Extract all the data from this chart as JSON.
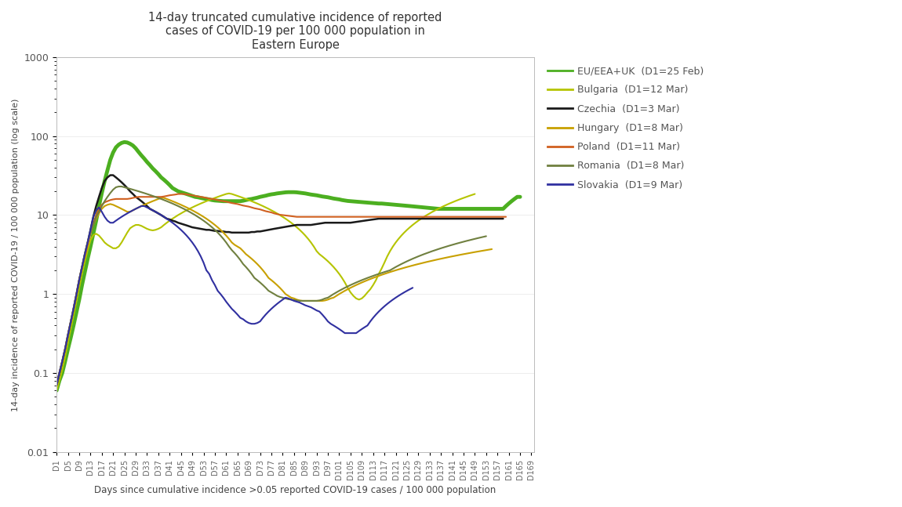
{
  "title": "14-day truncated cumulative incidence of reported\ncases of COVID-19 per 100 000 population in\nEastern Europe",
  "xlabel": "Days since cumulative incidence >0.05 reported COVID-19 cases / 100 000 population",
  "ylabel": "14-day incidence of reported COVID-19 / 100 000 population (log scale)",
  "ylim": [
    0.01,
    1000
  ],
  "background_color": "#ffffff",
  "series": [
    {
      "name": "EU/EEA+UK  (D1=25 Feb)",
      "color": "#4caf20",
      "linewidth": 3.5,
      "start_day": 1,
      "data": [
        0.06,
        0.08,
        0.1,
        0.14,
        0.2,
        0.28,
        0.4,
        0.58,
        0.85,
        1.3,
        1.9,
        2.8,
        4.0,
        5.8,
        8.5,
        13,
        19,
        27,
        37,
        50,
        62,
        72,
        78,
        82,
        84,
        83,
        80,
        76,
        70,
        63,
        57,
        52,
        47,
        43,
        39,
        36,
        33,
        30,
        28,
        26,
        24,
        22,
        21,
        20,
        19.5,
        19,
        18.5,
        18,
        17.5,
        17,
        16.8,
        16.5,
        16.2,
        16,
        15.8,
        15.5,
        15.3,
        15.2,
        15.1,
        15,
        15,
        15,
        15,
        15,
        15,
        15,
        15.2,
        15.5,
        15.8,
        16,
        16.3,
        16.6,
        17,
        17.3,
        17.6,
        18,
        18.3,
        18.5,
        18.8,
        19,
        19.2,
        19.4,
        19.5,
        19.5,
        19.5,
        19.4,
        19.2,
        19,
        18.8,
        18.5,
        18.2,
        18,
        17.8,
        17.5,
        17.2,
        17,
        16.8,
        16.5,
        16.2,
        16,
        15.8,
        15.5,
        15.3,
        15.1,
        15,
        14.9,
        14.8,
        14.7,
        14.6,
        14.5,
        14.4,
        14.3,
        14.2,
        14.1,
        14.0,
        14.0,
        13.9,
        13.8,
        13.7,
        13.6,
        13.5,
        13.4,
        13.3,
        13.2,
        13.1,
        13.0,
        12.9,
        12.8,
        12.7,
        12.6,
        12.5,
        12.4,
        12.3,
        12.2,
        12.1,
        12.0,
        12.0,
        12.0,
        12.0,
        12.0,
        12.0,
        12.0,
        12.0,
        12.0,
        12.0,
        12.0,
        12.0,
        12.0,
        12.0,
        12.0,
        12.0,
        12.0,
        12.0,
        12.0,
        12.0,
        12.0,
        12.0,
        12.0,
        12.0,
        13.0,
        14.0,
        15.0,
        16.0,
        17.0,
        17.0
      ]
    },
    {
      "name": "Bulgaria  (D1=12 Mar)",
      "color": "#b5c400",
      "linewidth": 1.5,
      "start_day": 1,
      "data": [
        0.06,
        0.08,
        0.11,
        0.16,
        0.24,
        0.36,
        0.54,
        0.8,
        1.2,
        1.8,
        2.6,
        3.6,
        4.8,
        5.6,
        5.8,
        5.5,
        5.0,
        4.5,
        4.2,
        4.0,
        3.8,
        3.8,
        4.0,
        4.5,
        5.2,
        6.0,
        6.8,
        7.2,
        7.5,
        7.5,
        7.3,
        7.0,
        6.7,
        6.5,
        6.4,
        6.5,
        6.7,
        7.0,
        7.5,
        8.0,
        8.5,
        9.0,
        9.5,
        10,
        10.5,
        11,
        11.5,
        12,
        12.5,
        13,
        13.5,
        14,
        14.5,
        15,
        15.5,
        16,
        16.5,
        17,
        17.5,
        18,
        18.5,
        18.8,
        18.5,
        18,
        17.5,
        17,
        16.5,
        16,
        15.5,
        15,
        14.5,
        14,
        13.5,
        13,
        12.5,
        12,
        11.5,
        11,
        10.5,
        10,
        9.5,
        9.0,
        8.5,
        8.0,
        7.5,
        7.0,
        6.5,
        6.0,
        5.5,
        5.0,
        4.5,
        4.0,
        3.5,
        3.2,
        3.0,
        2.8,
        2.6,
        2.4,
        2.2,
        2.0,
        1.8,
        1.6,
        1.4,
        1.2,
        1.05,
        0.95,
        0.88,
        0.85,
        0.88,
        0.95,
        1.05,
        1.15,
        1.3,
        1.5,
        1.8,
        2.1,
        2.5,
        3.0,
        3.5,
        4.0,
        4.5,
        5.0,
        5.5,
        6.0,
        6.5,
        7.0,
        7.5,
        8.0,
        8.5,
        9.0,
        9.5,
        10,
        10.5,
        11,
        11.5,
        12,
        12.5,
        13,
        13.5,
        14,
        14.5,
        15,
        15.5,
        16,
        16.5,
        17,
        17.5,
        18,
        18.5
      ]
    },
    {
      "name": "Czechia  (D1=3 Mar)",
      "color": "#1a1a1a",
      "linewidth": 1.8,
      "start_day": 1,
      "data": [
        0.07,
        0.1,
        0.14,
        0.2,
        0.3,
        0.44,
        0.65,
        0.98,
        1.5,
        2.2,
        3.2,
        4.5,
        6.5,
        9.5,
        13,
        17,
        22,
        27,
        30,
        32,
        32,
        30,
        28,
        26,
        24,
        22,
        20,
        18.5,
        17,
        16,
        15,
        14,
        13,
        12,
        11.5,
        11,
        10.5,
        10,
        9.5,
        9.0,
        8.8,
        8.5,
        8.3,
        8.0,
        7.8,
        7.6,
        7.4,
        7.2,
        7.0,
        6.9,
        6.8,
        6.7,
        6.6,
        6.5,
        6.5,
        6.4,
        6.3,
        6.3,
        6.2,
        6.2,
        6.1,
        6.1,
        6.0,
        6.0,
        6.0,
        6.0,
        6.0,
        6.0,
        6.0,
        6.1,
        6.1,
        6.2,
        6.2,
        6.3,
        6.4,
        6.5,
        6.6,
        6.7,
        6.8,
        6.9,
        7.0,
        7.1,
        7.2,
        7.3,
        7.4,
        7.5,
        7.5,
        7.5,
        7.5,
        7.5,
        7.5,
        7.6,
        7.7,
        7.8,
        7.9,
        8.0,
        8.0,
        8.0,
        8.0,
        8.0,
        8.0,
        8.0,
        8.0,
        8.0,
        8.0,
        8.1,
        8.2,
        8.3,
        8.4,
        8.5,
        8.6,
        8.7,
        8.8,
        8.9,
        9.0,
        9.0,
        9.0,
        9.0,
        9.0,
        9.0,
        9.0,
        9.0,
        9.0,
        9.0,
        9.0,
        9.0,
        9.0,
        9.0,
        9.0,
        9.0,
        9.0,
        9.0,
        9.0,
        9.0,
        9.0,
        9.0,
        9.0,
        9.0,
        9.0,
        9.0,
        9.0,
        9.0,
        9.0,
        9.0,
        9.0,
        9.0,
        9.0,
        9.0,
        9.0,
        9.0,
        9.0,
        9.0,
        9.0,
        9.0,
        9.0,
        9.0,
        9.0,
        9.0,
        9.0
      ]
    },
    {
      "name": "Hungary  (D1=8 Mar)",
      "color": "#c8a000",
      "linewidth": 1.5,
      "start_day": 1,
      "data": [
        0.07,
        0.1,
        0.14,
        0.2,
        0.3,
        0.44,
        0.65,
        0.98,
        1.5,
        2.2,
        3.2,
        4.5,
        6.0,
        7.5,
        9.0,
        10.5,
        12,
        13,
        13.5,
        13.8,
        13.5,
        13,
        12.5,
        12,
        11.5,
        11,
        11,
        11.5,
        12,
        12.5,
        13,
        13.5,
        14,
        14.5,
        15,
        15.5,
        16,
        16.5,
        16.5,
        16,
        15.5,
        15,
        14.5,
        14,
        13.5,
        13,
        12.5,
        12,
        11.5,
        11,
        10.5,
        10,
        9.5,
        9.0,
        8.5,
        8.0,
        7.5,
        7.0,
        6.5,
        6.0,
        5.5,
        5.0,
        4.5,
        4.2,
        4.0,
        3.8,
        3.5,
        3.2,
        3.0,
        2.8,
        2.6,
        2.4,
        2.2,
        2.0,
        1.8,
        1.6,
        1.5,
        1.4,
        1.3,
        1.2,
        1.1,
        1.0,
        0.95,
        0.9,
        0.88,
        0.85,
        0.83,
        0.82,
        0.82,
        0.82,
        0.82,
        0.82,
        0.82,
        0.82,
        0.82,
        0.83,
        0.85,
        0.88,
        0.9,
        0.95,
        1.0,
        1.05,
        1.1,
        1.15,
        1.2,
        1.25,
        1.3,
        1.35,
        1.4,
        1.45,
        1.5,
        1.55,
        1.6,
        1.65,
        1.7,
        1.75,
        1.8,
        1.85,
        1.9,
        1.95,
        2.0,
        2.05,
        2.1,
        2.15,
        2.2,
        2.25,
        2.3,
        2.35,
        2.4,
        2.45,
        2.5,
        2.55,
        2.6,
        2.65,
        2.7,
        2.75,
        2.8,
        2.85,
        2.9,
        2.95,
        3.0,
        3.05,
        3.1,
        3.15,
        3.2,
        3.25,
        3.3,
        3.35,
        3.4,
        3.45,
        3.5,
        3.55,
        3.6,
        3.65,
        3.7
      ]
    },
    {
      "name": "Poland  (D1=11 Mar)",
      "color": "#d06020",
      "linewidth": 1.5,
      "start_day": 1,
      "data": [
        0.07,
        0.1,
        0.14,
        0.2,
        0.3,
        0.44,
        0.65,
        0.98,
        1.5,
        2.2,
        3.0,
        4.2,
        5.8,
        7.8,
        10,
        12,
        13.5,
        14.5,
        15,
        15.5,
        15.8,
        16,
        16,
        16,
        16,
        16,
        16.2,
        16.5,
        16.8,
        17,
        17,
        17,
        17,
        17,
        17,
        17,
        17,
        17,
        17.2,
        17.5,
        17.8,
        18,
        18.2,
        18.5,
        18.5,
        18.5,
        18.3,
        18,
        17.8,
        17.5,
        17.2,
        17,
        16.8,
        16.5,
        16.2,
        16,
        15.8,
        15.5,
        15.2,
        15,
        14.8,
        14.5,
        14.2,
        14,
        13.8,
        13.5,
        13.2,
        13,
        12.8,
        12.5,
        12.2,
        12,
        11.8,
        11.5,
        11.2,
        11,
        10.8,
        10.5,
        10.3,
        10.1,
        10,
        9.9,
        9.8,
        9.7,
        9.6,
        9.5,
        9.5,
        9.5,
        9.5,
        9.5,
        9.5,
        9.5,
        9.5,
        9.5,
        9.5,
        9.5,
        9.5,
        9.5,
        9.5,
        9.5,
        9.5,
        9.5,
        9.5,
        9.5,
        9.5,
        9.5,
        9.5,
        9.5,
        9.5,
        9.5,
        9.5,
        9.5,
        9.5,
        9.5,
        9.5,
        9.5,
        9.5,
        9.5,
        9.5,
        9.5,
        9.5,
        9.5,
        9.5,
        9.5,
        9.5,
        9.5,
        9.5,
        9.5,
        9.5,
        9.5,
        9.5,
        9.5,
        9.5,
        9.5,
        9.5,
        9.5,
        9.5,
        9.5,
        9.5,
        9.5,
        9.5,
        9.5,
        9.5,
        9.5,
        9.5,
        9.5,
        9.5,
        9.5,
        9.5,
        9.5,
        9.5,
        9.5,
        9.5,
        9.5,
        9.5,
        9.5,
        9.5,
        9.5,
        9.5,
        9.5
      ]
    },
    {
      "name": "Romania  (D1=8 Mar)",
      "color": "#708040",
      "linewidth": 1.5,
      "start_day": 1,
      "data": [
        0.07,
        0.1,
        0.14,
        0.2,
        0.3,
        0.44,
        0.65,
        0.98,
        1.5,
        2.2,
        3.2,
        4.5,
        6.0,
        7.5,
        9.5,
        11,
        13,
        15,
        17,
        19,
        21,
        22.5,
        23,
        23,
        22.5,
        22,
        21.5,
        21,
        20.5,
        20,
        19.5,
        19,
        18.5,
        18,
        17.5,
        17,
        16.5,
        16,
        15.5,
        15,
        14.5,
        14,
        13.5,
        13,
        12.5,
        12,
        11.5,
        11,
        10.5,
        10,
        9.5,
        9.0,
        8.5,
        8.0,
        7.5,
        7.0,
        6.5,
        6.0,
        5.5,
        5.0,
        4.5,
        4.0,
        3.6,
        3.3,
        3.0,
        2.7,
        2.4,
        2.2,
        2.0,
        1.8,
        1.6,
        1.5,
        1.4,
        1.3,
        1.2,
        1.1,
        1.05,
        1.0,
        0.95,
        0.92,
        0.9,
        0.88,
        0.86,
        0.85,
        0.84,
        0.83,
        0.82,
        0.82,
        0.82,
        0.82,
        0.82,
        0.82,
        0.82,
        0.83,
        0.85,
        0.88,
        0.9,
        0.95,
        1.0,
        1.05,
        1.1,
        1.15,
        1.2,
        1.25,
        1.3,
        1.35,
        1.4,
        1.45,
        1.5,
        1.55,
        1.6,
        1.65,
        1.7,
        1.75,
        1.8,
        1.85,
        1.9,
        1.95,
        2.0,
        2.1,
        2.2,
        2.3,
        2.4,
        2.5,
        2.6,
        2.7,
        2.8,
        2.9,
        3.0,
        3.1,
        3.2,
        3.3,
        3.4,
        3.5,
        3.6,
        3.7,
        3.8,
        3.9,
        4.0,
        4.1,
        4.2,
        4.3,
        4.4,
        4.5,
        4.6,
        4.7,
        4.8,
        4.9,
        5.0,
        5.1,
        5.2,
        5.3,
        5.4
      ]
    },
    {
      "name": "Slovakia  (D1=9 Mar)",
      "color": "#3030a0",
      "linewidth": 1.5,
      "start_day": 1,
      "data": [
        0.07,
        0.1,
        0.14,
        0.2,
        0.3,
        0.44,
        0.65,
        0.98,
        1.5,
        2.2,
        3.2,
        4.5,
        6.5,
        9.5,
        11.5,
        12.5,
        11,
        9.5,
        8.5,
        8.0,
        8.0,
        8.5,
        9.0,
        9.5,
        10,
        10.5,
        11,
        11.5,
        12,
        12.5,
        13,
        13,
        12.5,
        12,
        11.5,
        11,
        10.5,
        10,
        9.5,
        9.0,
        8.5,
        8.0,
        7.5,
        7.0,
        6.5,
        6.0,
        5.5,
        5.0,
        4.5,
        4.0,
        3.5,
        3.0,
        2.5,
        2.0,
        1.8,
        1.5,
        1.3,
        1.1,
        1.0,
        0.9,
        0.8,
        0.72,
        0.65,
        0.6,
        0.55,
        0.5,
        0.48,
        0.45,
        0.43,
        0.42,
        0.42,
        0.43,
        0.45,
        0.5,
        0.55,
        0.6,
        0.65,
        0.7,
        0.75,
        0.8,
        0.85,
        0.9,
        0.88,
        0.85,
        0.82,
        0.8,
        0.78,
        0.75,
        0.72,
        0.7,
        0.68,
        0.65,
        0.62,
        0.6,
        0.55,
        0.5,
        0.45,
        0.42,
        0.4,
        0.38,
        0.36,
        0.34,
        0.32,
        0.32,
        0.32,
        0.32,
        0.32,
        0.34,
        0.36,
        0.38,
        0.4,
        0.45,
        0.5,
        0.55,
        0.6,
        0.65,
        0.7,
        0.75,
        0.8,
        0.85,
        0.9,
        0.95,
        1.0,
        1.05,
        1.1,
        1.15,
        1.2
      ]
    }
  ],
  "xtick_labels": [
    "D1",
    "D5",
    "D9",
    "D13",
    "D17",
    "D21",
    "D25",
    "D29",
    "D33",
    "D37",
    "D41",
    "D45",
    "D49",
    "D53",
    "D57",
    "D61",
    "D65",
    "D69",
    "D73",
    "D77",
    "D81",
    "D85",
    "D89",
    "D93",
    "D97",
    "D101",
    "D105",
    "D109",
    "D113",
    "D117",
    "D121",
    "D125",
    "D129",
    "D133",
    "D137",
    "D141",
    "D145",
    "D149",
    "D153",
    "D157",
    "D161",
    "D165",
    "D169"
  ],
  "xtick_positions": [
    1,
    5,
    9,
    13,
    17,
    21,
    25,
    29,
    33,
    37,
    41,
    45,
    49,
    53,
    57,
    61,
    65,
    69,
    73,
    77,
    81,
    85,
    89,
    93,
    97,
    101,
    105,
    109,
    113,
    117,
    121,
    125,
    129,
    133,
    137,
    141,
    145,
    149,
    153,
    157,
    161,
    165,
    169
  ]
}
